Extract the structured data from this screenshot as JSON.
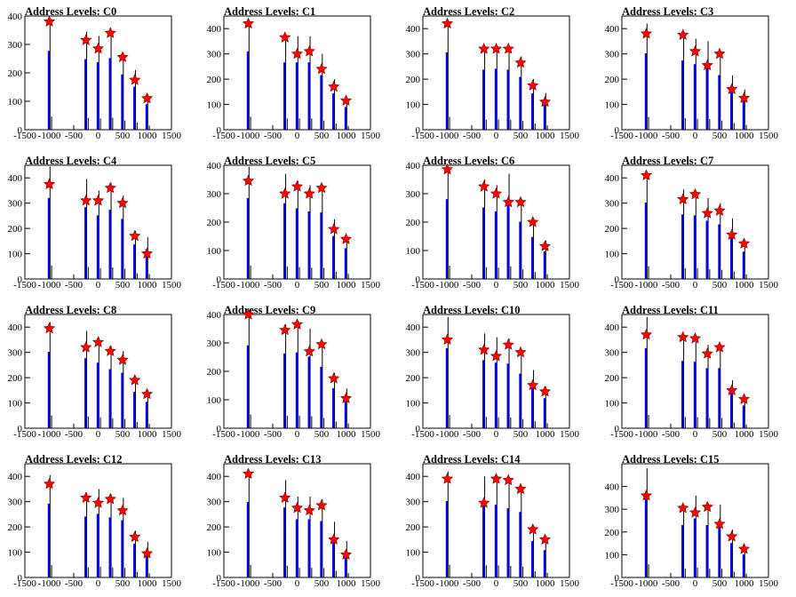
{
  "title_prefix": "Address Levels: ",
  "colors": {
    "hist_black": "#000000",
    "hist_blue": "#0000ff",
    "marker_fill": "#ff0000",
    "axis": "#000000"
  },
  "chart_data": [
    {
      "type": "bar",
      "title": "Address Levels: C0",
      "xlim": [
        -1500,
        1500
      ],
      "ylim": [
        0,
        400
      ],
      "xticks": [
        -1500,
        -1000,
        -500,
        0,
        500,
        1000,
        1500
      ],
      "yticks": [
        0,
        100,
        200,
        300,
        400
      ],
      "peaks": [
        {
          "x": -1000,
          "height": 385,
          "marker": 380
        },
        {
          "x": -250,
          "height": 345,
          "marker": 315
        },
        {
          "x": 0,
          "height": 330,
          "marker": 285
        },
        {
          "x": 250,
          "height": 350,
          "marker": 340
        },
        {
          "x": 500,
          "height": 270,
          "marker": 255
        },
        {
          "x": 750,
          "height": 210,
          "marker": 175
        },
        {
          "x": 1000,
          "height": 125,
          "marker": 110
        }
      ]
    },
    {
      "type": "bar",
      "title": "Address Levels: C1",
      "xlim": [
        -1500,
        1500
      ],
      "ylim": [
        0,
        450
      ],
      "xticks": [
        -1500,
        -1000,
        -500,
        0,
        500,
        1000,
        1500
      ],
      "yticks": [
        0,
        100,
        200,
        300,
        400
      ],
      "peaks": [
        {
          "x": -1000,
          "height": 430,
          "marker": 420
        },
        {
          "x": -250,
          "height": 370,
          "marker": 365
        },
        {
          "x": 0,
          "height": 370,
          "marker": 300
        },
        {
          "x": 250,
          "height": 370,
          "marker": 310
        },
        {
          "x": 500,
          "height": 300,
          "marker": 240
        },
        {
          "x": 750,
          "height": 200,
          "marker": 170
        },
        {
          "x": 1000,
          "height": 125,
          "marker": 115
        }
      ]
    },
    {
      "type": "bar",
      "title": "Address Levels: C2",
      "xlim": [
        -1500,
        1500
      ],
      "ylim": [
        0,
        450
      ],
      "xticks": [
        -1500,
        -1000,
        -500,
        0,
        500,
        1000,
        1500
      ],
      "yticks": [
        0,
        100,
        200,
        300,
        400
      ],
      "peaks": [
        {
          "x": -1000,
          "height": 425,
          "marker": 420
        },
        {
          "x": -250,
          "height": 330,
          "marker": 320
        },
        {
          "x": 0,
          "height": 335,
          "marker": 320
        },
        {
          "x": 250,
          "height": 330,
          "marker": 320
        },
        {
          "x": 500,
          "height": 290,
          "marker": 265
        },
        {
          "x": 750,
          "height": 200,
          "marker": 175
        },
        {
          "x": 1000,
          "height": 145,
          "marker": 110
        }
      ]
    },
    {
      "type": "bar",
      "title": "Address Levels: C3",
      "xlim": [
        -1500,
        1500
      ],
      "ylim": [
        0,
        450
      ],
      "xticks": [
        -1500,
        -1000,
        -500,
        0,
        500,
        1000,
        1500
      ],
      "yticks": [
        0,
        100,
        200,
        300,
        400
      ],
      "peaks": [
        {
          "x": -1000,
          "height": 420,
          "marker": 380
        },
        {
          "x": -250,
          "height": 380,
          "marker": 375
        },
        {
          "x": 0,
          "height": 360,
          "marker": 310
        },
        {
          "x": 250,
          "height": 350,
          "marker": 255
        },
        {
          "x": 500,
          "height": 300,
          "marker": 300
        },
        {
          "x": 750,
          "height": 215,
          "marker": 160
        },
        {
          "x": 1000,
          "height": 160,
          "marker": 125
        }
      ]
    },
    {
      "type": "bar",
      "title": "Address Levels: C4",
      "xlim": [
        -1500,
        1500
      ],
      "ylim": [
        0,
        450
      ],
      "xticks": [
        -1500,
        -1000,
        -500,
        0,
        500,
        1000,
        1500
      ],
      "yticks": [
        0,
        100,
        200,
        300,
        400
      ],
      "peaks": [
        {
          "x": -1000,
          "height": 445,
          "marker": 375
        },
        {
          "x": -250,
          "height": 395,
          "marker": 310
        },
        {
          "x": 0,
          "height": 350,
          "marker": 310
        },
        {
          "x": 250,
          "height": 380,
          "marker": 360
        },
        {
          "x": 500,
          "height": 330,
          "marker": 300
        },
        {
          "x": 750,
          "height": 190,
          "marker": 170
        },
        {
          "x": 1000,
          "height": 165,
          "marker": 100
        }
      ]
    },
    {
      "type": "bar",
      "title": "Address Levels: C5",
      "xlim": [
        -1500,
        1500
      ],
      "ylim": [
        0,
        400
      ],
      "xticks": [
        -1500,
        -1000,
        -500,
        0,
        500,
        1000,
        1500
      ],
      "yticks": [
        0,
        100,
        200,
        300,
        400
      ],
      "peaks": [
        {
          "x": -1000,
          "height": 395,
          "marker": 345
        },
        {
          "x": -250,
          "height": 370,
          "marker": 300
        },
        {
          "x": 0,
          "height": 345,
          "marker": 325
        },
        {
          "x": 250,
          "height": 330,
          "marker": 300
        },
        {
          "x": 500,
          "height": 325,
          "marker": 320
        },
        {
          "x": 750,
          "height": 210,
          "marker": 175
        },
        {
          "x": 1000,
          "height": 150,
          "marker": 140
        }
      ]
    },
    {
      "type": "bar",
      "title": "Address Levels: C6",
      "xlim": [
        -1500,
        1500
      ],
      "ylim": [
        0,
        400
      ],
      "xticks": [
        -1500,
        -1000,
        -500,
        0,
        500,
        1000,
        1500
      ],
      "yticks": [
        0,
        100,
        200,
        300,
        400
      ],
      "peaks": [
        {
          "x": -1000,
          "height": 390,
          "marker": 385
        },
        {
          "x": -250,
          "height": 350,
          "marker": 325
        },
        {
          "x": 0,
          "height": 330,
          "marker": 300
        },
        {
          "x": 250,
          "height": 370,
          "marker": 270
        },
        {
          "x": 500,
          "height": 280,
          "marker": 270
        },
        {
          "x": 750,
          "height": 205,
          "marker": 200
        },
        {
          "x": 1000,
          "height": 135,
          "marker": 115
        }
      ]
    },
    {
      "type": "bar",
      "title": "Address Levels: C7",
      "xlim": [
        -1500,
        1500
      ],
      "ylim": [
        0,
        450
      ],
      "xticks": [
        -1500,
        -1000,
        -500,
        0,
        500,
        1000,
        1500
      ],
      "yticks": [
        0,
        100,
        200,
        300,
        400
      ],
      "peaks": [
        {
          "x": -1000,
          "height": 420,
          "marker": 410
        },
        {
          "x": -250,
          "height": 355,
          "marker": 315
        },
        {
          "x": 0,
          "height": 350,
          "marker": 335
        },
        {
          "x": 250,
          "height": 320,
          "marker": 260
        },
        {
          "x": 500,
          "height": 300,
          "marker": 270
        },
        {
          "x": 750,
          "height": 240,
          "marker": 175
        },
        {
          "x": 1000,
          "height": 150,
          "marker": 140
        }
      ]
    },
    {
      "type": "bar",
      "title": "Address Levels: C8",
      "xlim": [
        -1500,
        1500
      ],
      "ylim": [
        0,
        450
      ],
      "xticks": [
        -1500,
        -1000,
        -500,
        0,
        500,
        1000,
        1500
      ],
      "yticks": [
        0,
        100,
        200,
        300,
        400
      ],
      "peaks": [
        {
          "x": -1000,
          "height": 420,
          "marker": 395
        },
        {
          "x": -250,
          "height": 385,
          "marker": 320
        },
        {
          "x": 0,
          "height": 360,
          "marker": 340
        },
        {
          "x": 250,
          "height": 325,
          "marker": 305
        },
        {
          "x": 500,
          "height": 305,
          "marker": 270
        },
        {
          "x": 750,
          "height": 200,
          "marker": 190
        },
        {
          "x": 1000,
          "height": 145,
          "marker": 135
        }
      ]
    },
    {
      "type": "bar",
      "title": "Address Levels: C9",
      "xlim": [
        -1500,
        1500
      ],
      "ylim": [
        0,
        400
      ],
      "xticks": [
        -1500,
        -1000,
        -500,
        0,
        500,
        1000,
        1500
      ],
      "yticks": [
        0,
        100,
        200,
        300,
        400
      ],
      "peaks": [
        {
          "x": -1000,
          "height": 405,
          "marker": 400
        },
        {
          "x": -250,
          "height": 365,
          "marker": 345
        },
        {
          "x": 0,
          "height": 370,
          "marker": 365
        },
        {
          "x": 250,
          "height": 350,
          "marker": 270
        },
        {
          "x": 500,
          "height": 300,
          "marker": 295
        },
        {
          "x": 750,
          "height": 195,
          "marker": 175
        },
        {
          "x": 1000,
          "height": 140,
          "marker": 105
        }
      ]
    },
    {
      "type": "bar",
      "title": "Address Levels: C10",
      "xlim": [
        -1500,
        1500
      ],
      "ylim": [
        0,
        450
      ],
      "xticks": [
        -1500,
        -1000,
        -500,
        0,
        500,
        1000,
        1500
      ],
      "yticks": [
        0,
        100,
        200,
        300,
        400
      ],
      "peaks": [
        {
          "x": -1000,
          "height": 440,
          "marker": 350
        },
        {
          "x": -250,
          "height": 375,
          "marker": 310
        },
        {
          "x": 0,
          "height": 360,
          "marker": 285
        },
        {
          "x": 250,
          "height": 355,
          "marker": 330
        },
        {
          "x": 500,
          "height": 300,
          "marker": 300
        },
        {
          "x": 750,
          "height": 230,
          "marker": 170
        },
        {
          "x": 1000,
          "height": 165,
          "marker": 145
        }
      ]
    },
    {
      "type": "bar",
      "title": "Address Levels: C11",
      "xlim": [
        -1500,
        1500
      ],
      "ylim": [
        0,
        450
      ],
      "xticks": [
        -1500,
        -1000,
        -500,
        0,
        500,
        1000,
        1500
      ],
      "yticks": [
        0,
        100,
        200,
        300,
        400
      ],
      "peaks": [
        {
          "x": -1000,
          "height": 440,
          "marker": 370
        },
        {
          "x": -250,
          "height": 370,
          "marker": 360
        },
        {
          "x": 0,
          "height": 365,
          "marker": 355
        },
        {
          "x": 250,
          "height": 330,
          "marker": 295
        },
        {
          "x": 500,
          "height": 330,
          "marker": 320
        },
        {
          "x": 750,
          "height": 190,
          "marker": 150
        },
        {
          "x": 1000,
          "height": 125,
          "marker": 115
        }
      ]
    },
    {
      "type": "bar",
      "title": "Address Levels: C12",
      "xlim": [
        -1500,
        1500
      ],
      "ylim": [
        0,
        450
      ],
      "xticks": [
        -1500,
        -1000,
        -500,
        0,
        500,
        1000,
        1500
      ],
      "yticks": [
        0,
        100,
        200,
        300,
        400
      ],
      "peaks": [
        {
          "x": -1000,
          "height": 405,
          "marker": 370
        },
        {
          "x": -250,
          "height": 335,
          "marker": 315
        },
        {
          "x": 0,
          "height": 350,
          "marker": 295
        },
        {
          "x": 250,
          "height": 330,
          "marker": 310
        },
        {
          "x": 500,
          "height": 315,
          "marker": 265
        },
        {
          "x": 750,
          "height": 185,
          "marker": 160
        },
        {
          "x": 1000,
          "height": 140,
          "marker": 95
        }
      ]
    },
    {
      "type": "bar",
      "title": "Address Levels: C13",
      "xlim": [
        -1500,
        1500
      ],
      "ylim": [
        0,
        450
      ],
      "xticks": [
        -1500,
        -1000,
        -500,
        0,
        500,
        1000,
        1500
      ],
      "yticks": [
        0,
        100,
        200,
        300,
        400
      ],
      "peaks": [
        {
          "x": -1000,
          "height": 415,
          "marker": 410
        },
        {
          "x": -250,
          "height": 385,
          "marker": 315
        },
        {
          "x": 0,
          "height": 320,
          "marker": 275
        },
        {
          "x": 250,
          "height": 320,
          "marker": 265
        },
        {
          "x": 500,
          "height": 310,
          "marker": 285
        },
        {
          "x": 750,
          "height": 220,
          "marker": 150
        },
        {
          "x": 1000,
          "height": 145,
          "marker": 90
        }
      ]
    },
    {
      "type": "bar",
      "title": "Address Levels: C14",
      "xlim": [
        -1500,
        1500
      ],
      "ylim": [
        0,
        450
      ],
      "xticks": [
        -1500,
        -1000,
        -500,
        0,
        500,
        1000,
        1500
      ],
      "yticks": [
        0,
        100,
        200,
        300,
        400
      ],
      "peaks": [
        {
          "x": -1000,
          "height": 420,
          "marker": 390
        },
        {
          "x": -250,
          "height": 400,
          "marker": 295
        },
        {
          "x": 0,
          "height": 400,
          "marker": 390
        },
        {
          "x": 250,
          "height": 380,
          "marker": 385
        },
        {
          "x": 500,
          "height": 360,
          "marker": 350
        },
        {
          "x": 750,
          "height": 200,
          "marker": 190
        },
        {
          "x": 1000,
          "height": 150,
          "marker": 150
        }
      ]
    },
    {
      "type": "bar",
      "title": "Address Levels: C15",
      "xlim": [
        -1500,
        1500
      ],
      "ylim": [
        0,
        500
      ],
      "xticks": [
        -1500,
        -1000,
        -500,
        0,
        500,
        1000,
        1500
      ],
      "yticks": [
        0,
        100,
        200,
        300,
        400
      ],
      "peaks": [
        {
          "x": -1000,
          "height": 480,
          "marker": 360
        },
        {
          "x": -250,
          "height": 320,
          "marker": 305
        },
        {
          "x": 0,
          "height": 360,
          "marker": 285
        },
        {
          "x": 250,
          "height": 320,
          "marker": 310
        },
        {
          "x": 500,
          "height": 320,
          "marker": 235
        },
        {
          "x": 750,
          "height": 210,
          "marker": 180
        },
        {
          "x": 1000,
          "height": 140,
          "marker": 125
        }
      ]
    }
  ]
}
